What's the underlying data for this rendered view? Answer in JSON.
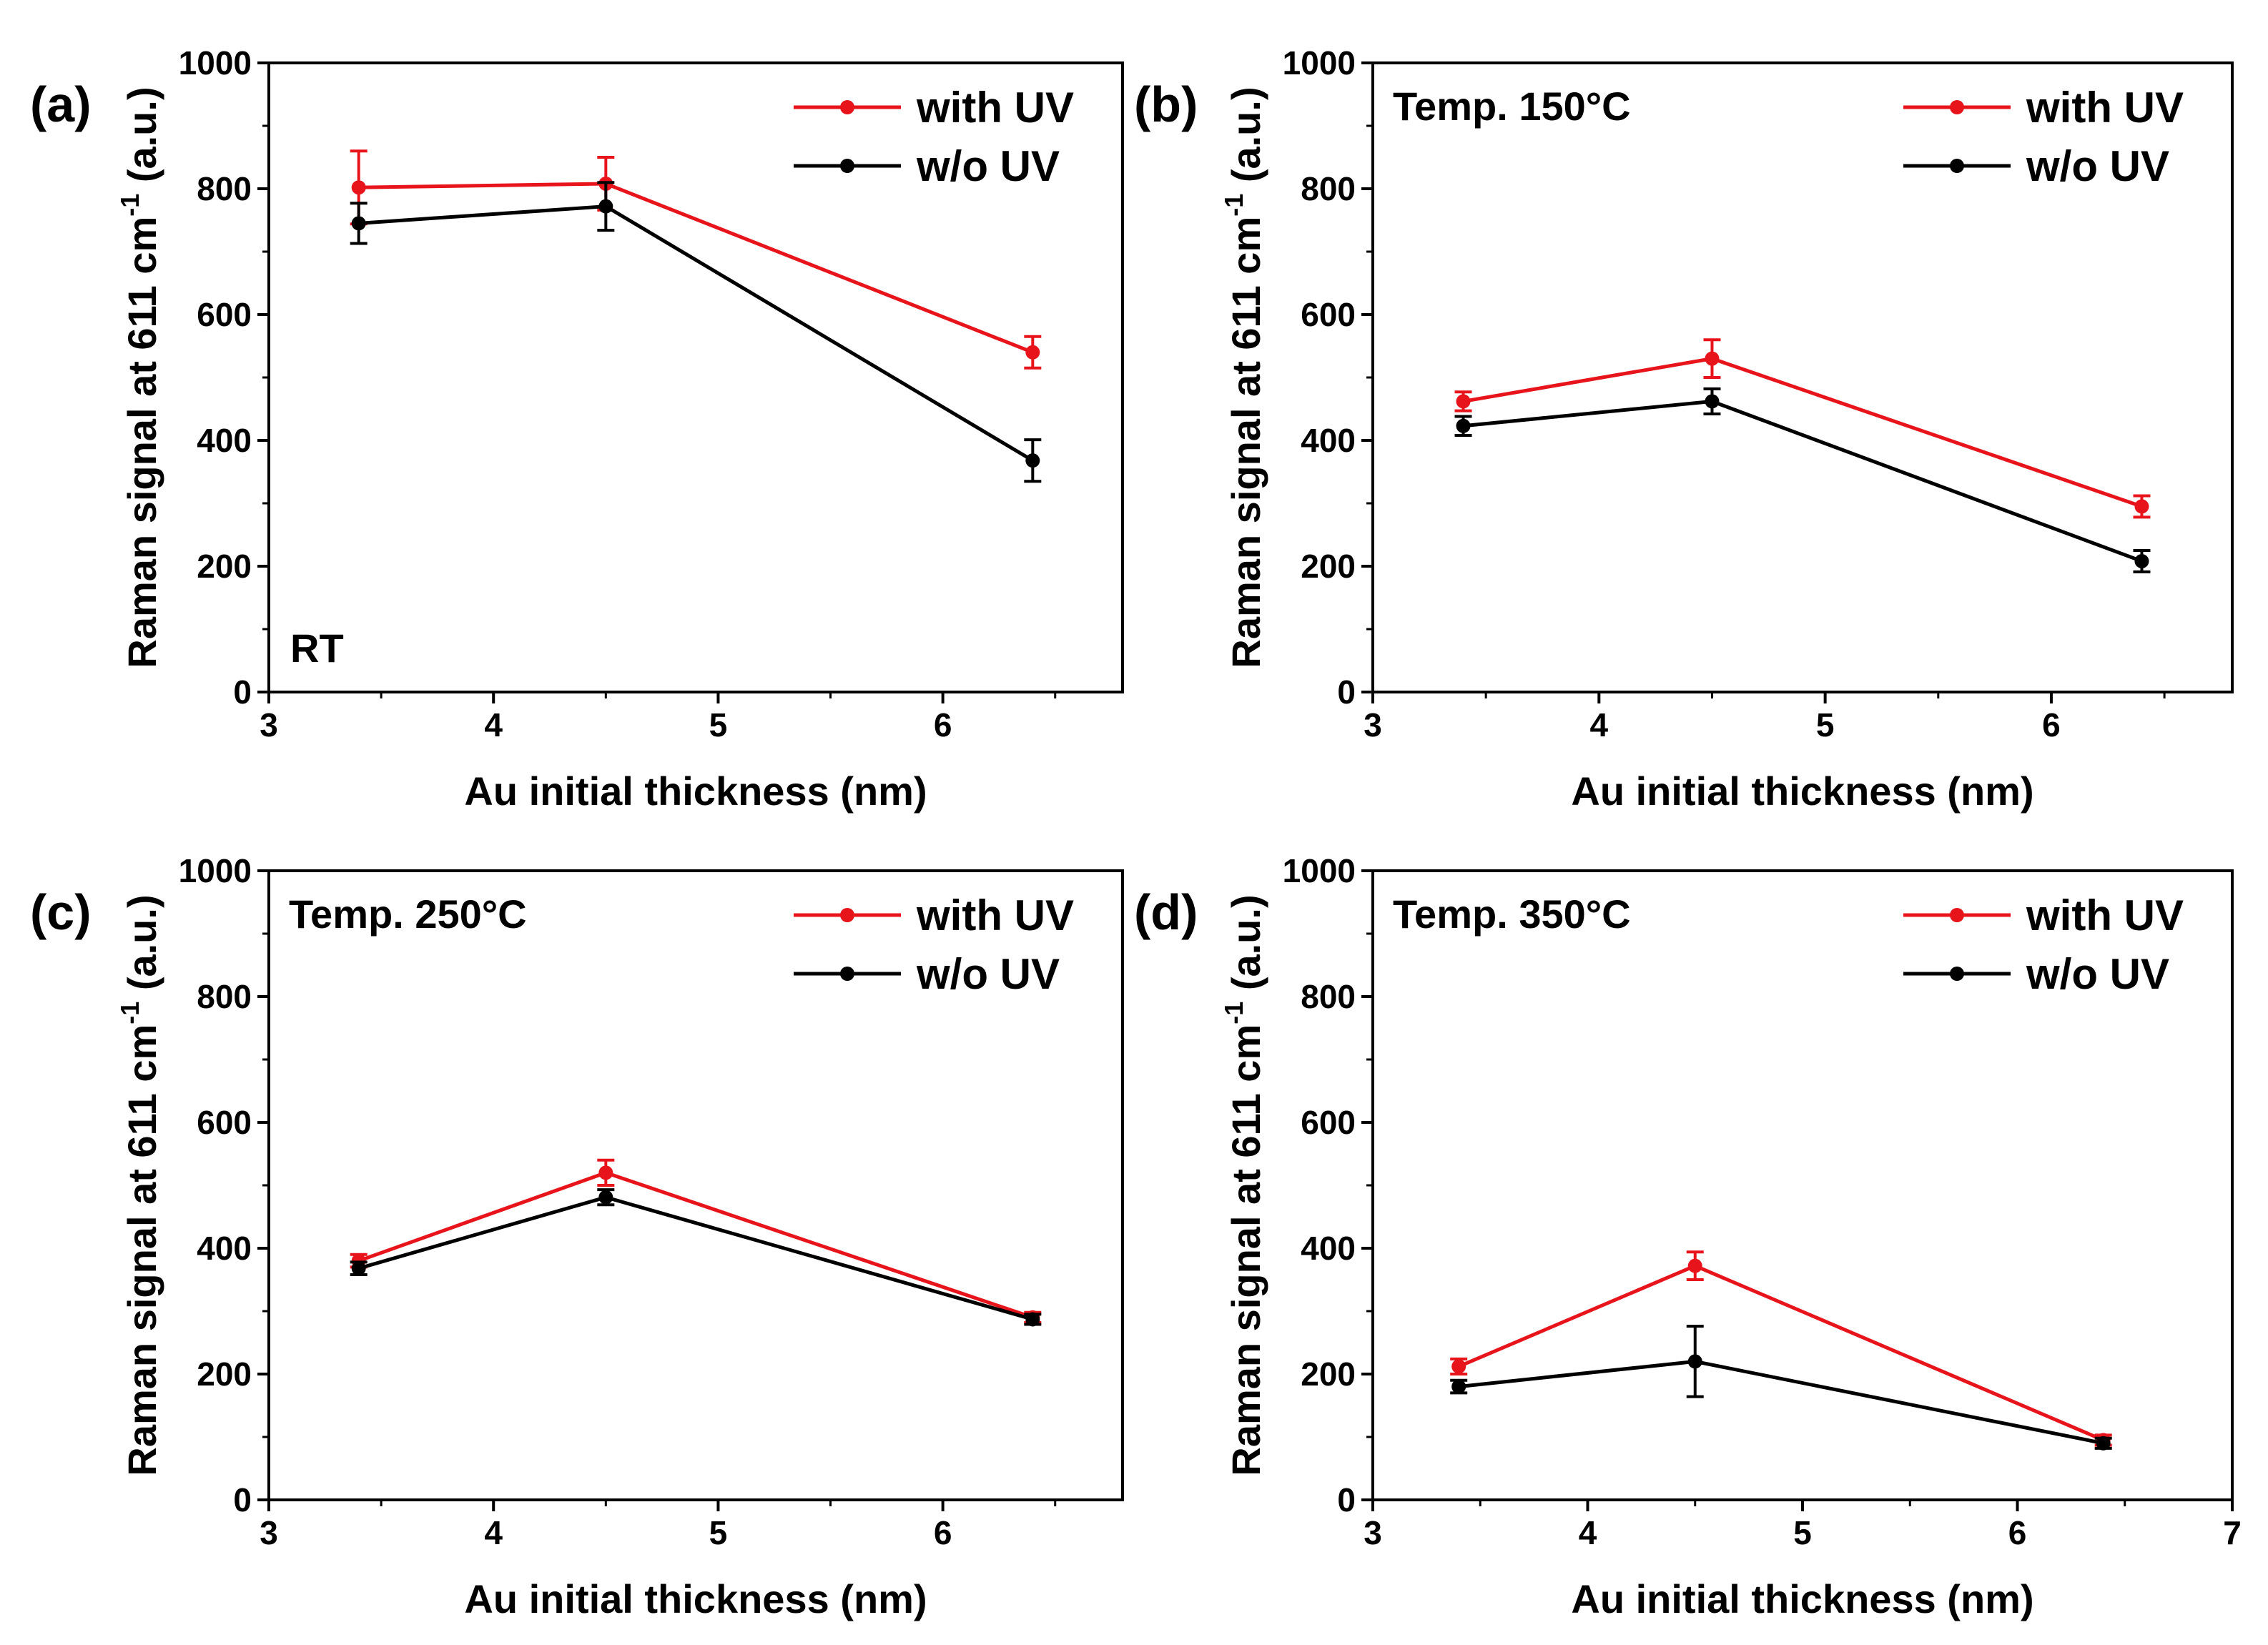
{
  "figure": {
    "panels": [
      "(a)",
      "(b)",
      "(c)",
      "(d)"
    ]
  },
  "chart_data": [
    {
      "panel": "(a)",
      "type": "line",
      "annotation": "RT",
      "xlabel": "Au initial thickness (nm)",
      "ylabel_main": "Raman signal at 611 cm",
      "ylabel_sup": "-1",
      "ylabel_tail": " (a.u.)",
      "xlim": [
        3,
        6.8
      ],
      "ylim": [
        0,
        1000
      ],
      "xticks": [
        3,
        4,
        5,
        6
      ],
      "yticks": [
        0,
        200,
        400,
        600,
        800,
        1000
      ],
      "grid": false,
      "legend_position": "top-right",
      "x": [
        3.4,
        4.5,
        6.4
      ],
      "series": [
        {
          "name": "with UV",
          "color": "#e8141b",
          "values": [
            802,
            808,
            540
          ],
          "errors": [
            58,
            42,
            25
          ]
        },
        {
          "name": "w/o UV",
          "color": "#000000",
          "values": [
            745,
            772,
            368
          ],
          "errors": [
            32,
            38,
            33
          ]
        }
      ]
    },
    {
      "panel": "(b)",
      "type": "line",
      "annotation": "Temp. 150°C",
      "xlabel": "Au initial thickness (nm)",
      "ylabel_main": "Raman signal at 611 cm",
      "ylabel_sup": "-1",
      "ylabel_tail": " (a.u.)",
      "xlim": [
        3,
        6.8
      ],
      "ylim": [
        0,
        1000
      ],
      "xticks": [
        3,
        4,
        5,
        6
      ],
      "yticks": [
        0,
        200,
        400,
        600,
        800,
        1000
      ],
      "grid": false,
      "legend_position": "top-right",
      "x": [
        3.4,
        4.5,
        6.4
      ],
      "series": [
        {
          "name": "with UV",
          "color": "#e8141b",
          "values": [
            462,
            530,
            295
          ],
          "errors": [
            15,
            30,
            17
          ]
        },
        {
          "name": "w/o UV",
          "color": "#000000",
          "values": [
            423,
            462,
            208
          ],
          "errors": [
            15,
            20,
            17
          ]
        }
      ]
    },
    {
      "panel": "(c)",
      "type": "line",
      "annotation": "Temp. 250°C",
      "xlabel": "Au initial thickness (nm)",
      "ylabel_main": "Raman signal at 611 cm",
      "ylabel_sup": "-1",
      "ylabel_tail": " (a.u.)",
      "xlim": [
        3,
        6.8
      ],
      "ylim": [
        0,
        1000
      ],
      "xticks": [
        3,
        4,
        5,
        6
      ],
      "yticks": [
        0,
        200,
        400,
        600,
        800,
        1000
      ],
      "grid": false,
      "legend_position": "top-right",
      "x": [
        3.4,
        4.5,
        6.4
      ],
      "series": [
        {
          "name": "with UV",
          "color": "#e8141b",
          "values": [
            380,
            520,
            290
          ],
          "errors": [
            10,
            20,
            8
          ]
        },
        {
          "name": "w/o UV",
          "color": "#000000",
          "values": [
            368,
            481,
            287
          ],
          "errors": [
            10,
            12,
            8
          ]
        }
      ]
    },
    {
      "panel": "(d)",
      "type": "line",
      "annotation": "Temp. 350°C",
      "xlabel": "Au initial thickness (nm)",
      "ylabel_main": "Raman signal at 611 cm",
      "ylabel_sup": "-1",
      "ylabel_tail": " (a.u.)",
      "xlim": [
        3,
        7
      ],
      "ylim": [
        0,
        1000
      ],
      "xticks": [
        3,
        4,
        5,
        6,
        7
      ],
      "yticks": [
        0,
        200,
        400,
        600,
        800,
        1000
      ],
      "grid": false,
      "legend_position": "top-right",
      "x": [
        3.4,
        4.5,
        6.4
      ],
      "series": [
        {
          "name": "with UV",
          "color": "#e8141b",
          "values": [
            212,
            372,
            95
          ],
          "errors": [
            12,
            22,
            8
          ]
        },
        {
          "name": "w/o UV",
          "color": "#000000",
          "values": [
            180,
            220,
            90
          ],
          "errors": [
            10,
            56,
            8
          ]
        }
      ]
    }
  ]
}
